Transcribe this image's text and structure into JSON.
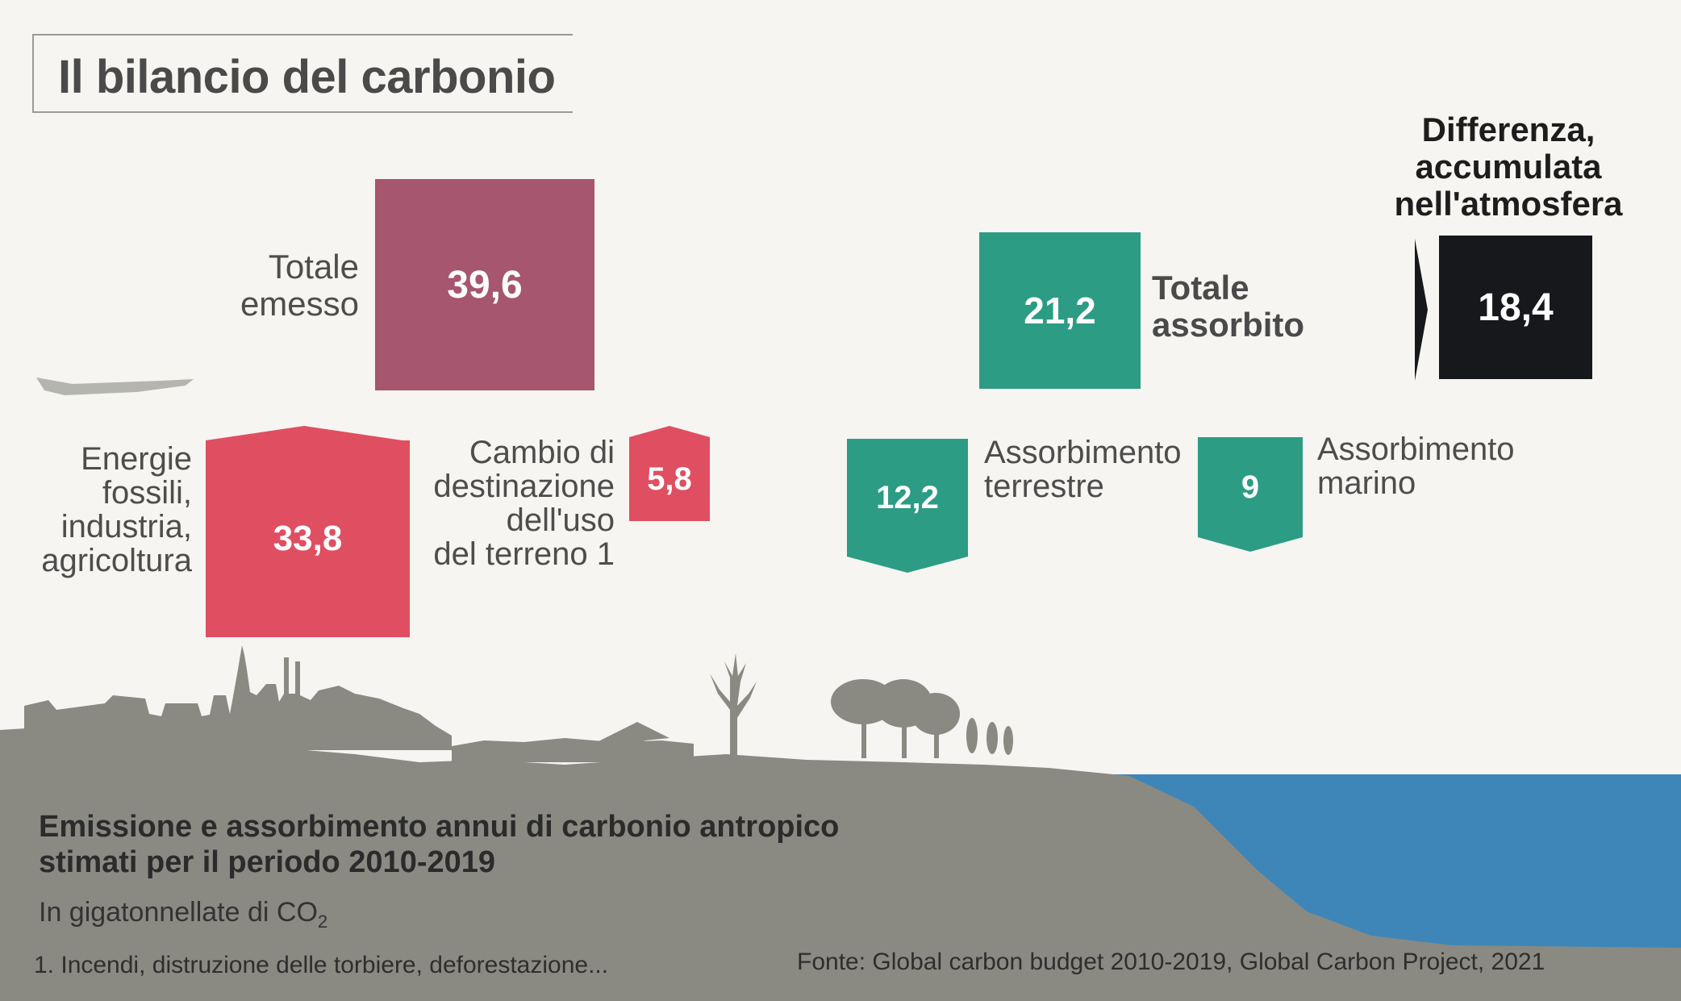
{
  "title": "Il bilancio del carbonio",
  "colors": {
    "emitted_total": "#a6566e",
    "emission_parts": "#e04e62",
    "absorbed": "#2c9c84",
    "atmosphere": "#16181c",
    "ground": "#8a8a82",
    "sea": "#3f86b8"
  },
  "emissions": {
    "total_label": [
      "Totale",
      "emesso"
    ],
    "total_value": "39,6",
    "fossil_label": [
      "Energie",
      "fossili,",
      "industria,",
      "agricoltura"
    ],
    "fossil_value": "33,8",
    "landuse_label": [
      "Cambio di",
      "destinazione",
      "dell'uso",
      "del terreno 1"
    ],
    "landuse_value": "5,8"
  },
  "absorption": {
    "total_label": [
      "Totale",
      "assorbito"
    ],
    "total_value": "21,2",
    "land_label": [
      "Assorbimento",
      "terrestre"
    ],
    "land_value": "12,2",
    "ocean_label": [
      "Assorbimento",
      "marino"
    ],
    "ocean_value": "9"
  },
  "difference": {
    "label": [
      "Differenza,",
      "accumulata",
      "nell'atmosfera"
    ],
    "value": "18,4"
  },
  "caption": {
    "heading_line1": "Emissione e assorbimento annui di carbonio antropico",
    "heading_line2": "stimati per il periodo 2010-2019",
    "unit": "In gigatonnellate di CO",
    "unit_sub": "2",
    "footnote": "1. Incendi, distruzione delle torbiere, deforestazione...",
    "source": "Fonte: Global carbon budget 2010-2019, Global Carbon Project, 2021"
  }
}
